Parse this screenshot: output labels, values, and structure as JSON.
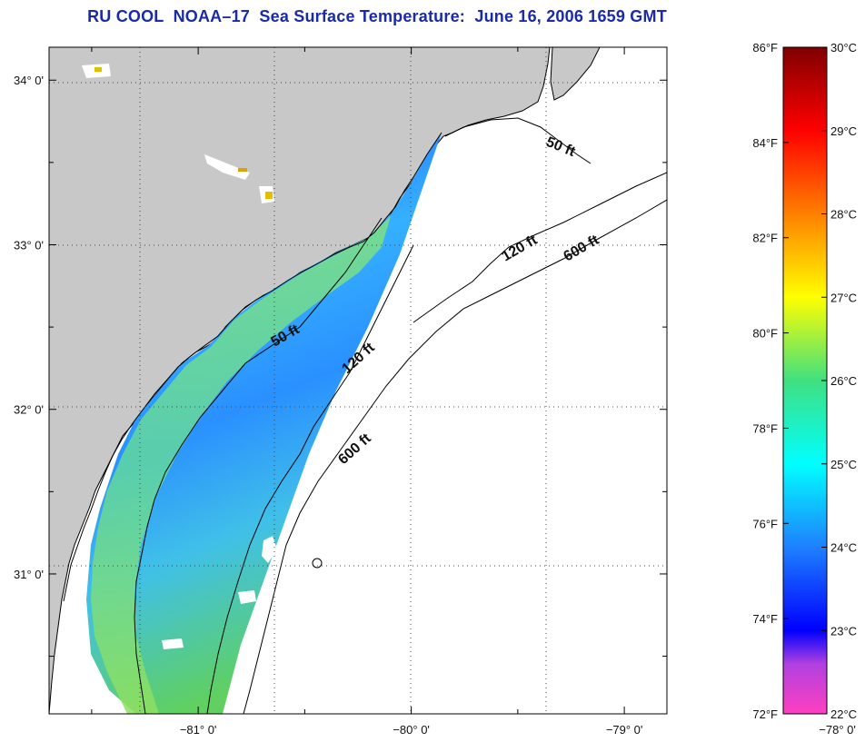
{
  "title": "RU COOL  NOAA–17  Sea Surface Temperature:  June 16, 2006 1659 GMT",
  "map": {
    "lon_range": [
      -81.7,
      -78.8
    ],
    "lat_range": [
      30.15,
      34.2
    ],
    "lon_ticks": [
      {
        "value": -81,
        "label": "−81° 0'"
      },
      {
        "value": -80,
        "label": "−80° 0'"
      },
      {
        "value": -79,
        "label": "−79° 0'"
      },
      {
        "value": -78,
        "label": "−78° 0'"
      }
    ],
    "lat_ticks": [
      {
        "value": 34,
        "label": "34° 0'"
      },
      {
        "value": 33,
        "label": "33° 0'"
      },
      {
        "value": 32,
        "label": "32° 0'"
      },
      {
        "value": 31,
        "label": "31° 0'"
      }
    ],
    "gridlines": true,
    "colors": {
      "land": "#c8c8c8",
      "ocean_no_data": "#ffffff",
      "coastline": "#000000",
      "grid": "#444444"
    },
    "contour_labels": [
      {
        "id": "50ft-north",
        "text": "50 ft"
      },
      {
        "id": "120ft-north",
        "text": "120 ft"
      },
      {
        "id": "600ft-north",
        "text": "600 ft"
      },
      {
        "id": "50ft-south",
        "text": "50 ft"
      },
      {
        "id": "120ft-south",
        "text": "120 ft"
      },
      {
        "id": "600ft-south",
        "text": "600 ft"
      }
    ]
  },
  "colorbar": {
    "range_celsius": [
      22,
      30
    ],
    "range_fahrenheit": [
      72,
      86
    ],
    "fahrenheit_labels": [
      "86°F",
      "84°F",
      "82°F",
      "80°F",
      "78°F",
      "76°F",
      "74°F",
      "72°F"
    ],
    "fahrenheit_values": [
      86,
      84,
      82,
      80,
      78,
      76,
      74,
      72
    ],
    "celsius_labels": [
      "30°C",
      "29°C",
      "28°C",
      "27°C",
      "26°C",
      "25°C",
      "24°C",
      "23°C",
      "22°C"
    ],
    "celsius_values": [
      30,
      29,
      28,
      27,
      26,
      25,
      24,
      23,
      22
    ],
    "stops": [
      {
        "celsius": 22.0,
        "color": "#ff40c0"
      },
      {
        "celsius": 22.6,
        "color": "#b040e0"
      },
      {
        "celsius": 23.0,
        "color": "#0000ff"
      },
      {
        "celsius": 24.0,
        "color": "#1e80ff"
      },
      {
        "celsius": 25.0,
        "color": "#00ffff"
      },
      {
        "celsius": 26.0,
        "color": "#40e080"
      },
      {
        "celsius": 27.0,
        "color": "#ffff00"
      },
      {
        "celsius": 28.0,
        "color": "#ff8000"
      },
      {
        "celsius": 29.0,
        "color": "#ff0000"
      },
      {
        "celsius": 30.0,
        "color": "#800000"
      }
    ]
  }
}
